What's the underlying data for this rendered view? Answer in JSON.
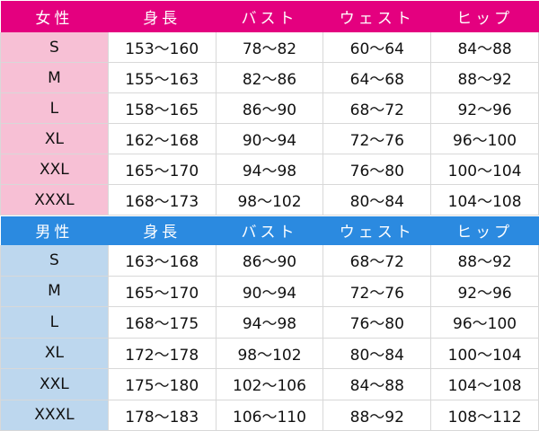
{
  "columns": [
    "身長",
    "バスト",
    "ウェスト",
    "ヒップ"
  ],
  "colors": {
    "female_header": "#e4007f",
    "female_label": "#f7c0d5",
    "male_header": "#2b8ae0",
    "male_label": "#bdd7ee"
  },
  "sections": [
    {
      "title": "女性",
      "rows": [
        {
          "size": "S",
          "values": [
            "153～160",
            "78～82",
            "60～64",
            "84～88"
          ]
        },
        {
          "size": "M",
          "values": [
            "155～163",
            "82～86",
            "64～68",
            "88～92"
          ]
        },
        {
          "size": "L",
          "values": [
            "158～165",
            "86～90",
            "68～72",
            "92～96"
          ]
        },
        {
          "size": "XL",
          "values": [
            "162～168",
            "90～94",
            "72～76",
            "96～100"
          ]
        },
        {
          "size": "XXL",
          "values": [
            "165～170",
            "94～98",
            "76～80",
            "100～104"
          ]
        },
        {
          "size": "XXXL",
          "values": [
            "168～173",
            "98～102",
            "80～84",
            "104～108"
          ]
        }
      ]
    },
    {
      "title": "男性",
      "rows": [
        {
          "size": "S",
          "values": [
            "163～168",
            "86～90",
            "68～72",
            "88～92"
          ]
        },
        {
          "size": "M",
          "values": [
            "165～170",
            "90～94",
            "72～76",
            "92～96"
          ]
        },
        {
          "size": "L",
          "values": [
            "168～175",
            "94～98",
            "76～80",
            "96～100"
          ]
        },
        {
          "size": "XL",
          "values": [
            "172～178",
            "98～102",
            "80～84",
            "100～104"
          ]
        },
        {
          "size": "XXL",
          "values": [
            "175～180",
            "102～106",
            "84～88",
            "104～108"
          ]
        },
        {
          "size": "XXXL",
          "values": [
            "178～183",
            "106～110",
            "88～92",
            "108～112"
          ]
        }
      ]
    }
  ]
}
